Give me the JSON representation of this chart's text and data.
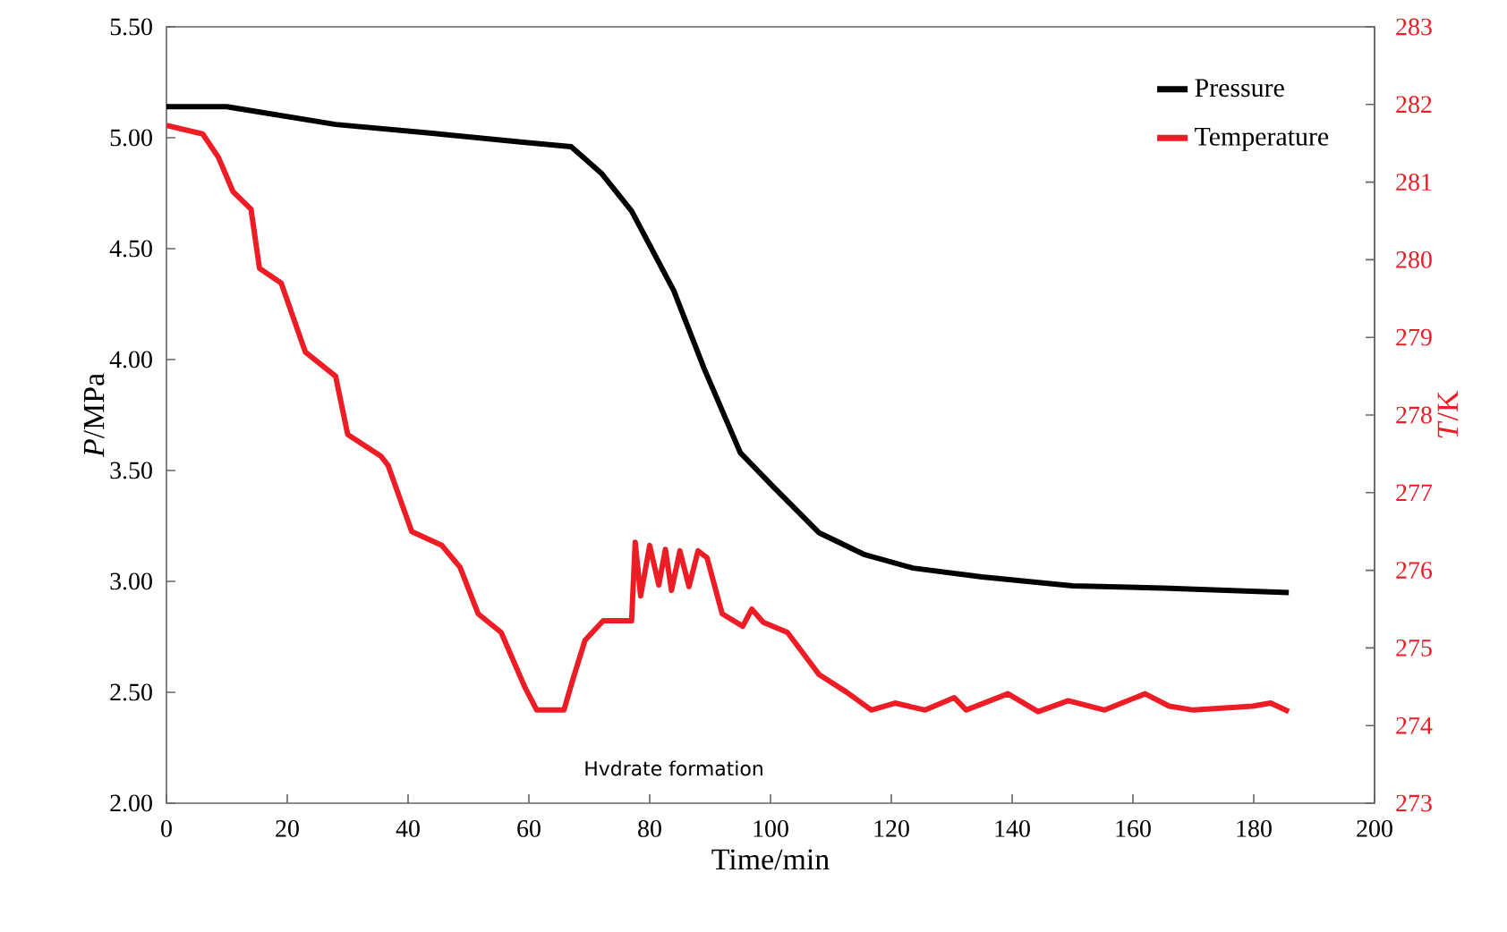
{
  "chart_data": {
    "type": "line",
    "xlabel": "Time/min",
    "ylabel": "*P*/MPa",
    "y2label": "*T*/K",
    "xlim": [
      0,
      200
    ],
    "xticks": [
      0,
      20,
      40,
      60,
      80,
      100,
      120,
      140,
      160,
      180,
      200
    ],
    "ylim": [
      2.0,
      5.5
    ],
    "yticks": [
      {
        "value": 2.0,
        "label": "2.00"
      },
      {
        "value": 2.5,
        "label": "2.50"
      },
      {
        "value": 3.0,
        "label": "3.00"
      },
      {
        "value": 3.5,
        "label": "3.50"
      },
      {
        "value": 4.0,
        "label": "4.00"
      },
      {
        "value": 4.5,
        "label": "4.50"
      },
      {
        "value": 5.0,
        "label": "5.00"
      },
      {
        "value": 5.5,
        "label": "5.50"
      }
    ],
    "y2lim": [
      273,
      283
    ],
    "y2ticks": [
      273,
      274,
      275,
      276,
      277,
      278,
      279,
      280,
      281,
      282,
      283
    ],
    "legend": "top right",
    "grid": false,
    "annotations": [
      "Hvdrate formation"
    ],
    "series": [
      {
        "name": "Pressure",
        "color": "#000000",
        "axis": "y",
        "x": [
          0,
          10,
          28,
          44,
          59,
          67,
          72,
          77,
          84,
          89,
          95,
          100.7,
          108,
          115.6,
          123.6,
          135,
          150,
          165,
          185.8
        ],
        "values": [
          5.14,
          5.14,
          5.06,
          5.02,
          4.98,
          4.96,
          4.84,
          4.67,
          4.31,
          3.96,
          3.58,
          3.42,
          3.22,
          3.12,
          3.06,
          3.02,
          2.98,
          2.97,
          2.95
        ]
      },
      {
        "name": "Temperature",
        "color": "#ee1c25",
        "axis": "y2",
        "x": [
          0,
          6,
          8.6,
          11,
          14,
          15.4,
          19,
          23,
          28,
          30,
          35.5,
          36.7,
          40.6,
          45.6,
          48.6,
          51.6,
          55.4,
          59.3,
          61.3,
          65.8,
          67.3,
          69.3,
          72.3,
          77,
          77.6,
          78.5,
          80,
          81.5,
          82.6,
          83.6,
          85,
          86.5,
          88,
          89.5,
          92,
          95.4,
          96.9,
          98.8,
          102.8,
          105.8,
          108,
          112.6,
          116.7,
          120.6,
          125.6,
          130.4,
          132.4,
          139.3,
          144.3,
          149.3,
          155.3,
          162,
          166,
          170,
          179.8,
          182.8,
          185.8
        ],
        "values": [
          281.73,
          281.62,
          281.32,
          280.88,
          280.65,
          279.89,
          279.7,
          278.81,
          278.5,
          277.75,
          277.47,
          277.35,
          276.5,
          276.32,
          276.04,
          275.44,
          275.2,
          274.5,
          274.2,
          274.2,
          274.6,
          275.1,
          275.35,
          275.35,
          276.36,
          275.67,
          276.32,
          275.81,
          276.27,
          275.74,
          276.25,
          275.79,
          276.25,
          276.16,
          275.44,
          275.28,
          275.5,
          275.33,
          275.2,
          274.89,
          274.66,
          274.43,
          274.2,
          274.29,
          274.2,
          274.36,
          274.2,
          274.41,
          274.18,
          274.32,
          274.2,
          274.41,
          274.25,
          274.2,
          274.25,
          274.29,
          274.18
        ]
      }
    ]
  }
}
